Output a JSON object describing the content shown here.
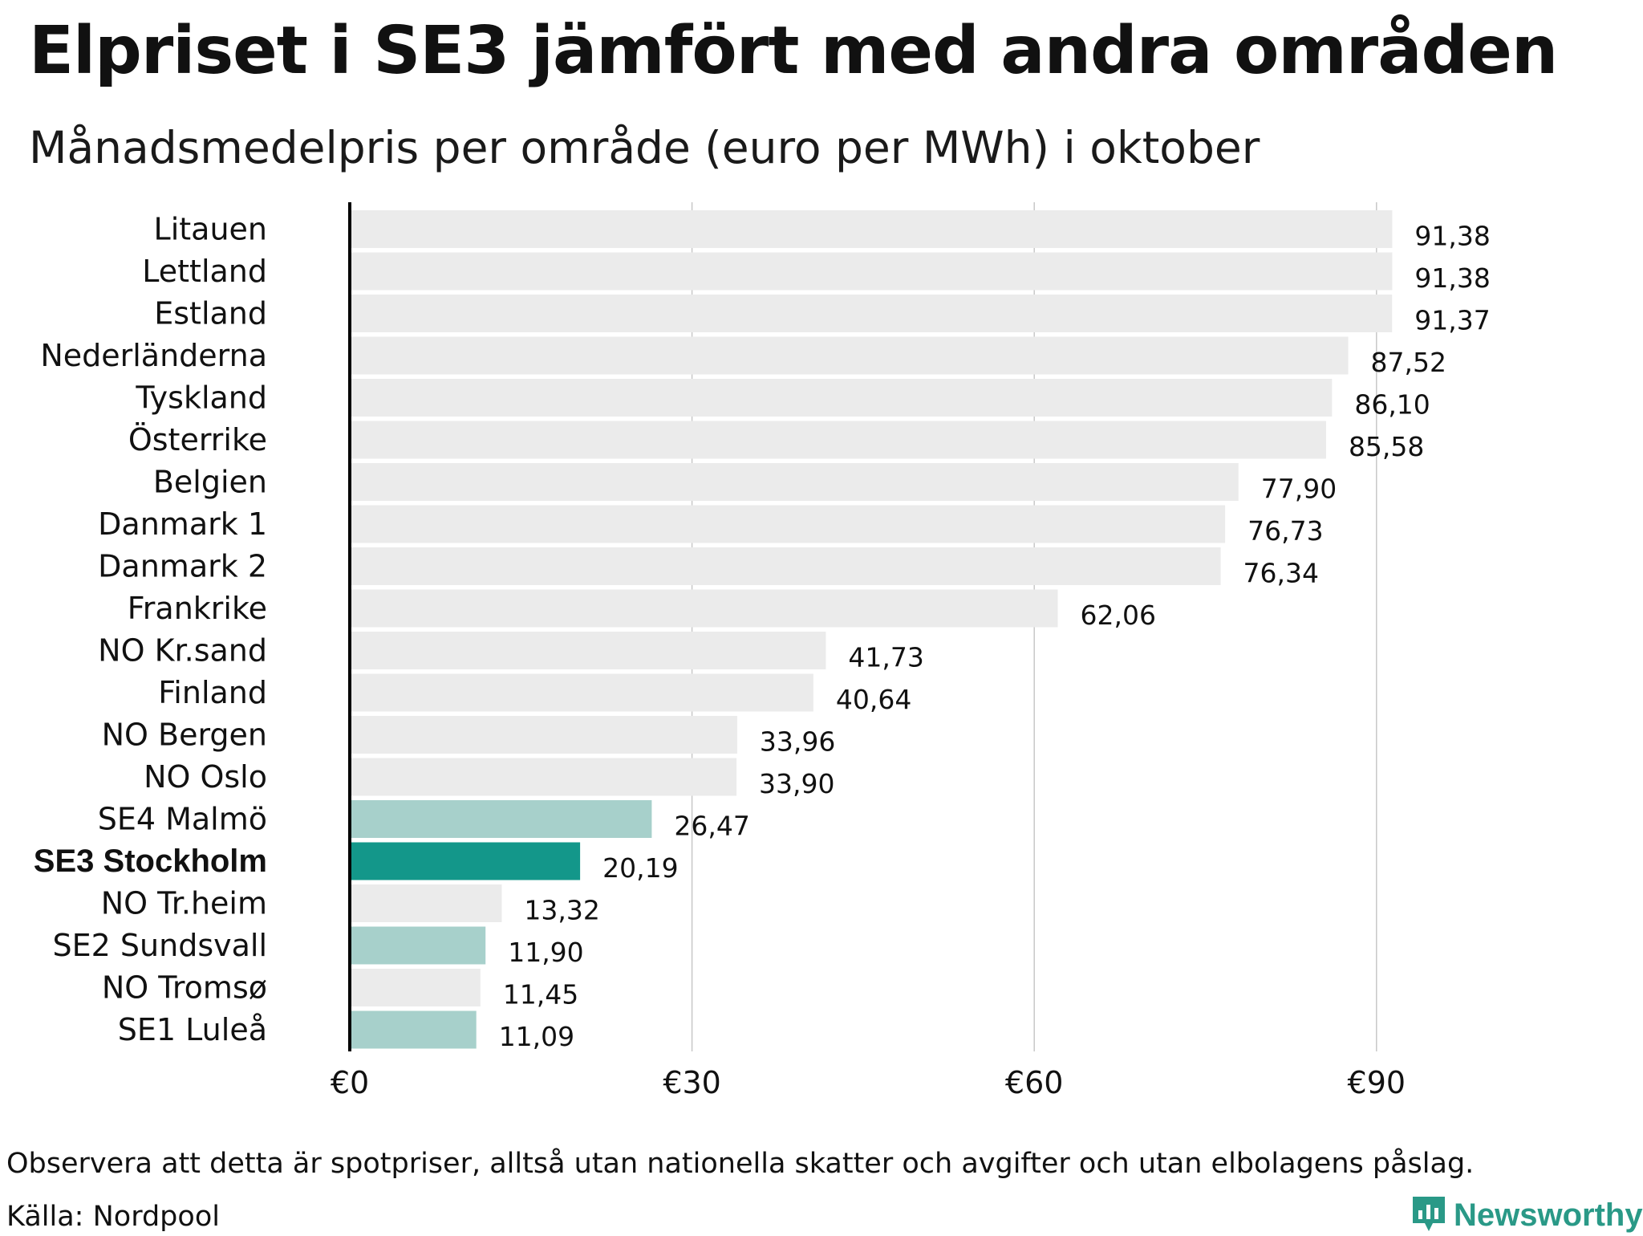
{
  "header": {
    "title": "Elpriset i SE3 jämfört med andra områden",
    "subtitle": "Månadsmedelpris per område (euro per MWh) i oktober"
  },
  "footer": {
    "note": "Observera att detta är spotpriser, alltså utan nationella skatter och avgifter och utan elbolagens påslag.",
    "source": "Källa: Nordpool",
    "brand": "Newsworthy"
  },
  "colors": {
    "default_bar": "#ebebeb",
    "se_bar": "#a7d0cb",
    "highlight_bar": "#13978a",
    "grid": "#c8c8c8",
    "axis": "#000000",
    "brand": "#2a9987"
  },
  "icons": {
    "brand_logo": "newsworthy-logo-icon"
  },
  "chart_data": {
    "type": "bar",
    "orientation": "horizontal",
    "title": "Elpriset i SE3 jämfört med andra områden",
    "subtitle": "Månadsmedelpris per område (euro per MWh) i oktober",
    "xlim": [
      0,
      100
    ],
    "xticks": [
      0,
      30,
      60,
      90
    ],
    "xtick_labels": [
      "€0",
      "€30",
      "€60",
      "€90"
    ],
    "grid": "vertical",
    "categories": [
      "Litauen",
      "Lettland",
      "Estland",
      "Nederländerna",
      "Tyskland",
      "Österrike",
      "Belgien",
      "Danmark  1",
      "Danmark  2",
      "Frankrike",
      "NO Kr.sand",
      "Finland",
      "NO Bergen",
      "NO Oslo",
      "SE4  Malmö",
      "SE3 Stockholm",
      "NO Tr.heim",
      "SE2  Sundsvall",
      "NO Tromsø",
      "SE1  Luleå"
    ],
    "values": [
      91.38,
      91.38,
      91.37,
      87.52,
      86.1,
      85.58,
      77.9,
      76.73,
      76.34,
      62.06,
      41.73,
      40.64,
      33.96,
      33.9,
      26.47,
      20.19,
      13.32,
      11.9,
      11.45,
      11.09
    ],
    "value_labels": [
      "91,38",
      "91,38",
      "91,37",
      "87,52",
      "86,10",
      "85,58",
      "77,90",
      "76,73",
      "76,34",
      "62,06",
      "41,73",
      "40,64",
      "33,96",
      "33,90",
      "26,47",
      "20,19",
      "13,32",
      "11,90",
      "11,45",
      "11,09"
    ],
    "bar_groups": [
      "other",
      "other",
      "other",
      "other",
      "other",
      "other",
      "other",
      "other",
      "other",
      "other",
      "other",
      "other",
      "other",
      "other",
      "se",
      "highlight",
      "other",
      "se",
      "other",
      "se"
    ]
  }
}
